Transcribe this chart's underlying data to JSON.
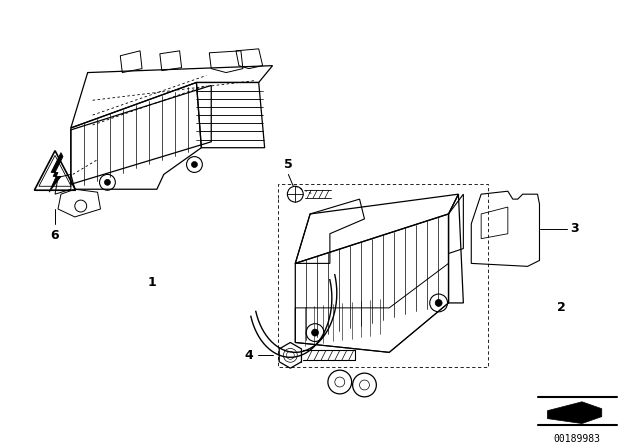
{
  "background_color": "#ffffff",
  "fig_width": 6.4,
  "fig_height": 4.48,
  "dpi": 100,
  "watermark": "00189983",
  "line_color": "#000000",
  "text_color": "#000000",
  "label_fontsize": 9,
  "watermark_fontsize": 7
}
